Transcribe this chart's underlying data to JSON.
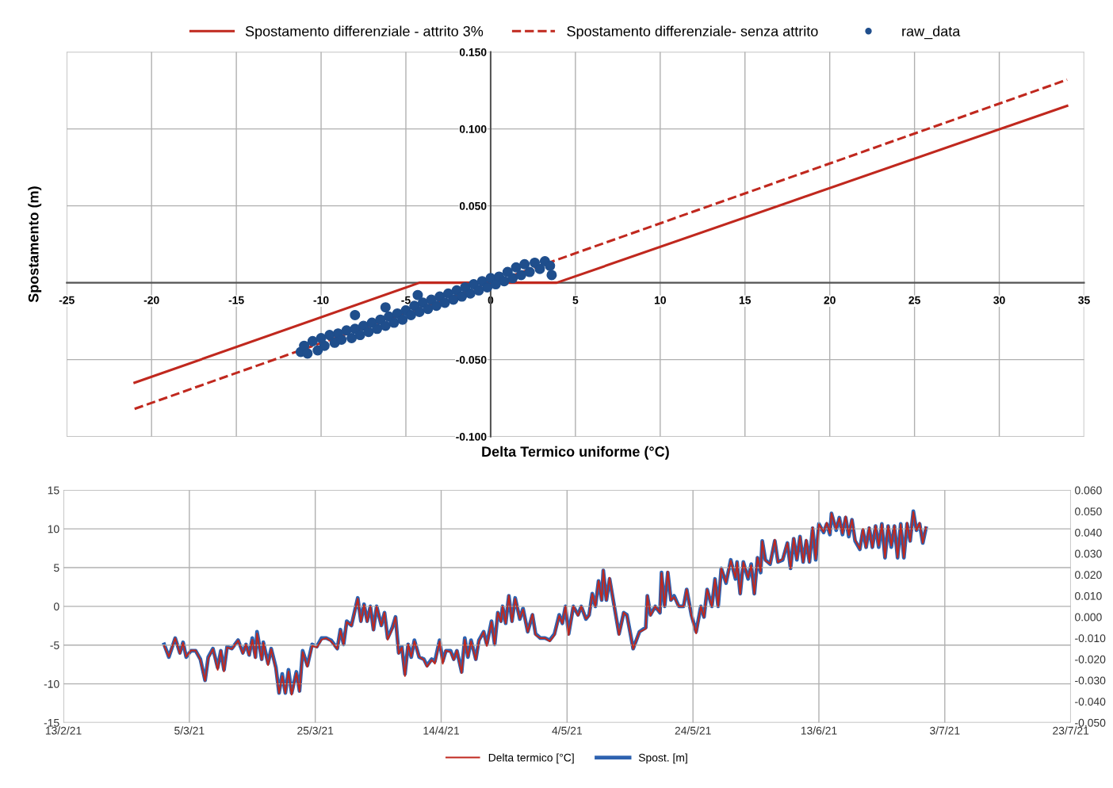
{
  "chart_data": [
    {
      "type": "line",
      "xlabel": "Delta Termico uniforme (°C)",
      "ylabel": "Spostamento (m)",
      "legend": "top",
      "grid": true,
      "xlim": [
        -25,
        35
      ],
      "xticks": [
        -25,
        -20,
        -15,
        -10,
        -5,
        0,
        5,
        10,
        15,
        20,
        25,
        30,
        35
      ],
      "ylim": [
        -0.1,
        0.15
      ],
      "yticks": [
        {
          "value": -0.1,
          "label": "-0.100"
        },
        {
          "value": -0.05,
          "label": "-0.050"
        },
        {
          "value": 0,
          "label": null
        },
        {
          "value": 0.05,
          "label": "0.050"
        },
        {
          "value": 0.1,
          "label": "0.100"
        },
        {
          "value": 0.15,
          "label": "0.150"
        }
      ],
      "series": [
        {
          "name": "Spostamento differenziale - attrito 3%",
          "type": "line",
          "line_style": "solid",
          "color": "#c0281e",
          "x": [
            -21,
            -4.2,
            3.9,
            34
          ],
          "values": [
            -0.065,
            0,
            0,
            0.115
          ]
        },
        {
          "name": "Spostamento differenziale- senza attrito",
          "type": "line",
          "line_style": "dashed",
          "color": "#c0281e",
          "x": [
            -21,
            34
          ],
          "values": [
            -0.082,
            0.132
          ]
        },
        {
          "name": "raw_data",
          "type": "scatter",
          "marker": "circle",
          "color": "#1f4e8c",
          "x": [
            -11.2,
            -11,
            -10.8,
            -10.5,
            -10.2,
            -10,
            -9.8,
            -9.5,
            -9.2,
            -9,
            -8.8,
            -8.5,
            -8.2,
            -8,
            -7.7,
            -7.5,
            -7.2,
            -7,
            -6.7,
            -6.5,
            -6.2,
            -6,
            -5.7,
            -5.5,
            -5.2,
            -5,
            -4.7,
            -4.5,
            -4.2,
            -4,
            -3.7,
            -3.5,
            -3.2,
            -3,
            -2.7,
            -2.5,
            -2.2,
            -2,
            -1.7,
            -1.5,
            -1.2,
            -1,
            -0.7,
            -0.5,
            -0.2,
            0,
            0.3,
            0.5,
            0.8,
            1,
            1.3,
            1.5,
            1.8,
            2,
            2.3,
            2.6,
            2.9,
            3.2,
            3.5,
            3.6,
            -4.3,
            -6.2,
            -8
          ],
          "values": [
            -0.045,
            -0.041,
            -0.046,
            -0.038,
            -0.044,
            -0.036,
            -0.041,
            -0.034,
            -0.039,
            -0.033,
            -0.037,
            -0.031,
            -0.036,
            -0.03,
            -0.034,
            -0.028,
            -0.032,
            -0.026,
            -0.03,
            -0.024,
            -0.028,
            -0.022,
            -0.026,
            -0.02,
            -0.024,
            -0.018,
            -0.021,
            -0.015,
            -0.019,
            -0.013,
            -0.017,
            -0.011,
            -0.015,
            -0.009,
            -0.013,
            -0.007,
            -0.011,
            -0.005,
            -0.009,
            -0.003,
            -0.007,
            -0.001,
            -0.005,
            0.001,
            -0.003,
            0.003,
            -0.001,
            0.004,
            0.001,
            0.007,
            0.003,
            0.01,
            0.005,
            0.012,
            0.007,
            0.013,
            0.009,
            0.014,
            0.011,
            0.005,
            -0.008,
            -0.016,
            -0.021
          ]
        }
      ]
    },
    {
      "type": "line",
      "legend": "bottom",
      "grid": true,
      "xlim": [
        "2021-02-13",
        "2021-07-23"
      ],
      "xticks": [
        {
          "value": "2021-02-13",
          "label": "13/2/21"
        },
        {
          "value": "2021-03-05",
          "label": "5/3/21"
        },
        {
          "value": "2021-03-25",
          "label": "25/3/21"
        },
        {
          "value": "2021-04-14",
          "label": "14/4/21"
        },
        {
          "value": "2021-05-04",
          "label": "4/5/21"
        },
        {
          "value": "2021-05-24",
          "label": "24/5/21"
        },
        {
          "value": "2021-06-13",
          "label": "13/6/21"
        },
        {
          "value": "2021-07-03",
          "label": "3/7/21"
        },
        {
          "value": "2021-07-23",
          "label": "23/7/21"
        }
      ],
      "ylim": [
        -15,
        15
      ],
      "yticks": [
        -15,
        -10,
        -5,
        0,
        5,
        10,
        15
      ],
      "y2lim": [
        -0.05,
        0.06
      ],
      "y2ticks": [
        {
          "value": -0.05,
          "label": "-0.050"
        },
        {
          "value": -0.04,
          "label": "-0.040"
        },
        {
          "value": -0.03,
          "label": "-0.030"
        },
        {
          "value": -0.02,
          "label": "-0.020"
        },
        {
          "value": -0.01,
          "label": "-0.010"
        },
        {
          "value": 0,
          "label": "0.000"
        },
        {
          "value": 0.01,
          "label": "0.010"
        },
        {
          "value": 0.02,
          "label": "0.020"
        },
        {
          "value": 0.03,
          "label": "0.030"
        },
        {
          "value": 0.04,
          "label": "0.040"
        },
        {
          "value": 0.05,
          "label": "0.050"
        },
        {
          "value": 0.06,
          "label": "0.060"
        }
      ],
      "x": [
        "2021-03-01T00:00",
        "2021-03-01T18:00",
        "2021-03-02T18:00",
        "2021-03-03T12:00",
        "2021-03-04T00:00",
        "2021-03-04T12:00",
        "2021-03-05T06:00",
        "2021-03-06T00:00",
        "2021-03-06T18:00",
        "2021-03-07T12:00",
        "2021-03-08T00:00",
        "2021-03-08T18:00",
        "2021-03-09T12:00",
        "2021-03-10T00:00",
        "2021-03-10T12:00",
        "2021-03-11T00:00",
        "2021-03-11T18:00",
        "2021-03-12T18:00",
        "2021-03-13T12:00",
        "2021-03-14T00:00",
        "2021-03-14T12:00",
        "2021-03-15T00:00",
        "2021-03-15T12:00",
        "2021-03-15T18:00",
        "2021-03-16T12:00",
        "2021-03-16T18:00",
        "2021-03-17T12:00",
        "2021-03-18T00:00",
        "2021-03-18T18:00",
        "2021-03-19T06:00",
        "2021-03-19T18:00",
        "2021-03-20T06:00",
        "2021-03-20T18:00",
        "2021-03-21T06:00",
        "2021-03-22T00:00",
        "2021-03-22T12:00",
        "2021-03-23T00:00",
        "2021-03-23T18:00",
        "2021-03-24T12:00",
        "2021-03-25T06:00",
        "2021-03-26T00:00",
        "2021-03-26T18:00",
        "2021-03-27T12:00",
        "2021-03-28T12:00",
        "2021-03-29T00:00",
        "2021-03-29T12:00",
        "2021-03-30T00:00",
        "2021-03-30T18:00",
        "2021-03-31T18:00",
        "2021-04-01T06:00",
        "2021-04-01T18:00",
        "2021-04-02T06:00",
        "2021-04-02T18:00",
        "2021-04-03T06:00",
        "2021-04-03T18:00",
        "2021-04-04T12:00",
        "2021-04-05T00:00",
        "2021-04-05T12:00",
        "2021-04-06T06:00",
        "2021-04-06T18:00",
        "2021-04-07T06:00",
        "2021-04-07T18:00",
        "2021-04-08T06:00",
        "2021-04-08T18:00",
        "2021-04-09T06:00",
        "2021-04-09T18:00",
        "2021-04-10T12:00",
        "2021-04-11T06:00",
        "2021-04-11T18:00",
        "2021-04-12T12:00",
        "2021-04-13T00:00",
        "2021-04-13T18:00",
        "2021-04-14T06:00",
        "2021-04-14T18:00",
        "2021-04-15T12:00",
        "2021-04-16T00:00",
        "2021-04-16T12:00",
        "2021-04-17T06:00",
        "2021-04-17T18:00",
        "2021-04-18T06:00",
        "2021-04-18T18:00",
        "2021-04-19T12:00",
        "2021-04-20T00:00",
        "2021-04-20T18:00",
        "2021-04-21T06:00",
        "2021-04-22T00:00",
        "2021-04-22T12:00",
        "2021-04-23T00:00",
        "2021-04-23T12:00",
        "2021-04-23T18:00",
        "2021-04-24T06:00",
        "2021-04-24T18:00",
        "2021-04-25T06:00",
        "2021-04-25T18:00",
        "2021-04-26T12:00",
        "2021-04-27T00:00",
        "2021-04-27T18:00",
        "2021-04-28T12:00",
        "2021-04-29T00:00",
        "2021-04-29T18:00",
        "2021-04-30T12:00",
        "2021-05-01T06:00",
        "2021-05-02T00:00",
        "2021-05-02T18:00",
        "2021-05-03T06:00",
        "2021-05-03T18:00",
        "2021-05-04T06:00",
        "2021-05-05T00:00",
        "2021-05-05T18:00",
        "2021-05-06T06:00",
        "2021-05-07T00:00",
        "2021-05-07T12:00",
        "2021-05-08T00:00",
        "2021-05-08T12:00",
        "2021-05-09T00:00",
        "2021-05-09T12:00",
        "2021-05-09T18:00",
        "2021-05-10T06:00",
        "2021-05-10T18:00",
        "2021-05-11T12:00",
        "2021-05-12T06:00",
        "2021-05-13T00:00",
        "2021-05-13T12:00",
        "2021-05-14T12:00",
        "2021-05-15T12:00",
        "2021-05-16T12:00",
        "2021-05-16T18:00",
        "2021-05-17T06:00",
        "2021-05-18T00:00",
        "2021-05-18T18:00",
        "2021-05-19T00:00",
        "2021-05-19T12:00",
        "2021-05-20T00:00",
        "2021-05-20T12:00",
        "2021-05-21T00:00",
        "2021-05-21T18:00",
        "2021-05-22T12:00",
        "2021-05-23T00:00",
        "2021-05-23T18:00",
        "2021-05-24T12:00",
        "2021-05-25T06:00",
        "2021-05-25T18:00",
        "2021-05-26T06:00",
        "2021-05-27T00:00",
        "2021-05-27T12:00",
        "2021-05-28T00:00",
        "2021-05-28T12:00",
        "2021-05-29T06:00",
        "2021-05-30T00:00",
        "2021-05-30T18:00",
        "2021-05-31T00:00",
        "2021-05-31T12:00",
        "2021-06-01T00:00",
        "2021-06-01T18:00",
        "2021-06-02T06:00",
        "2021-06-02T18:00",
        "2021-06-03T06:00",
        "2021-06-03T18:00",
        "2021-06-04T00:00",
        "2021-06-04T12:00",
        "2021-06-05T06:00",
        "2021-06-06T00:00",
        "2021-06-06T12:00",
        "2021-06-07T06:00",
        "2021-06-08T00:00",
        "2021-06-08T12:00",
        "2021-06-09T00:00",
        "2021-06-09T12:00",
        "2021-06-10T00:00",
        "2021-06-10T12:00",
        "2021-06-11T00:00",
        "2021-06-11T12:00",
        "2021-06-12T00:00",
        "2021-06-12T12:00",
        "2021-06-13T00:00",
        "2021-06-13T18:00",
        "2021-06-14T06:00",
        "2021-06-14T18:00",
        "2021-06-15T00:00",
        "2021-06-15T18:00",
        "2021-06-16T06:00",
        "2021-06-16T18:00",
        "2021-06-17T06:00",
        "2021-06-17T18:00",
        "2021-06-18T06:00",
        "2021-06-18T18:00",
        "2021-06-19T12:00",
        "2021-06-20T00:00",
        "2021-06-20T12:00",
        "2021-06-21T00:00",
        "2021-06-21T12:00",
        "2021-06-22T00:00",
        "2021-06-22T12:00",
        "2021-06-23T00:00",
        "2021-06-23T12:00",
        "2021-06-24T00:00",
        "2021-06-24T12:00",
        "2021-06-25T00:00",
        "2021-06-25T12:00",
        "2021-06-26T00:00",
        "2021-06-26T12:00",
        "2021-06-27T00:00",
        "2021-06-27T12:00",
        "2021-06-28T00:00",
        "2021-06-28T12:00",
        "2021-06-29T00:00",
        "2021-06-29T12:00",
        "2021-06-30T00:00"
      ],
      "series": [
        {
          "name": "Delta termico [°C]",
          "color": "#c0281e",
          "values": [
            -5.1,
            -6.5,
            -4.1,
            -6.1,
            -4.7,
            -6.5,
            -5.7,
            -5.7,
            -6.9,
            -9.6,
            -6.7,
            -5.5,
            -8.2,
            -5.7,
            -8.4,
            -5.3,
            -5.5,
            -4.4,
            -6.1,
            -4.9,
            -6.3,
            -4.3,
            -6.7,
            -3.5,
            -6.9,
            -4.7,
            -7.6,
            -5.5,
            -8.2,
            -11.2,
            -9.0,
            -11.2,
            -8.4,
            -11.4,
            -8.6,
            -11.0,
            -5.9,
            -7.8,
            -5.1,
            -5.3,
            -4.3,
            -4.1,
            -4.5,
            -5.5,
            -3.1,
            -4.9,
            -2.0,
            -2.5,
            1.0,
            -2.0,
            0.2,
            -2.0,
            0.0,
            -3.1,
            0.0,
            -2.5,
            -0.8,
            -4.3,
            -2.9,
            -1.4,
            -6.1,
            -5.3,
            -9.0,
            -4.9,
            -6.5,
            -4.5,
            -6.5,
            -6.9,
            -7.8,
            -6.9,
            -7.4,
            -4.5,
            -7.4,
            -5.7,
            -5.9,
            -6.9,
            -5.7,
            -8.6,
            -4.3,
            -6.5,
            -4.5,
            -6.9,
            -4.5,
            -3.3,
            -5.1,
            -2.0,
            -4.9,
            -0.8,
            -2.0,
            0.0,
            -2.2,
            1.4,
            -2.0,
            1.0,
            -1.6,
            -0.4,
            -3.3,
            -1.0,
            -3.7,
            -4.1,
            -4.1,
            -4.5,
            -3.7,
            -1.2,
            -2.2,
            0.0,
            -3.7,
            0.0,
            -1.2,
            0.0,
            -1.6,
            -1.2,
            1.6,
            0.0,
            3.3,
            0.8,
            4.7,
            0.8,
            3.7,
            0.0,
            -3.7,
            -0.8,
            -1.2,
            -5.5,
            -3.3,
            -2.9,
            1.4,
            -1.2,
            0.0,
            -0.8,
            4.3,
            0.0,
            4.5,
            0.8,
            1.2,
            0.0,
            0.0,
            2.2,
            -1.2,
            -3.5,
            0.0,
            -1.4,
            2.2,
            0.0,
            3.5,
            0.0,
            4.9,
            3.1,
            5.9,
            3.7,
            5.7,
            1.6,
            5.7,
            3.7,
            5.3,
            1.6,
            6.3,
            4.5,
            8.4,
            5.9,
            5.5,
            8.6,
            5.7,
            6.1,
            8.2,
            4.9,
            8.8,
            6.1,
            9.0,
            5.7,
            8.6,
            5.7,
            10.2,
            6.1,
            10.6,
            9.6,
            10.8,
            9.4,
            12.0,
            10.0,
            11.4,
            9.4,
            11.6,
            9.2,
            11.2,
            8.6,
            7.4,
            10.0,
            7.6,
            10.2,
            7.6,
            10.4,
            7.8,
            10.6,
            6.3,
            10.4,
            7.8,
            10.4,
            6.3,
            10.6,
            6.3,
            10.8,
            8.4,
            12.2,
            9.8,
            10.8,
            8.2,
            10.2
          ]
        },
        {
          "name": "Spost. [m]",
          "color": "#2e62b0",
          "axis": "y2",
          "values": [
            -0.013,
            -0.019,
            -0.01,
            -0.017,
            -0.012,
            -0.019,
            -0.016,
            -0.016,
            -0.02,
            -0.03,
            -0.019,
            -0.015,
            -0.024,
            -0.016,
            -0.025,
            -0.014,
            -0.015,
            -0.011,
            -0.017,
            -0.013,
            -0.018,
            -0.01,
            -0.019,
            -0.007,
            -0.02,
            -0.012,
            -0.022,
            -0.015,
            -0.024,
            -0.036,
            -0.027,
            -0.036,
            -0.025,
            -0.036,
            -0.026,
            -0.035,
            -0.016,
            -0.023,
            -0.013,
            -0.014,
            -0.01,
            -0.01,
            -0.011,
            -0.015,
            -0.006,
            -0.013,
            -0.002,
            -0.004,
            0.009,
            -0.002,
            0.006,
            -0.002,
            0.005,
            -0.006,
            0.005,
            -0.004,
            0.002,
            -0.01,
            -0.005,
            0.0,
            -0.017,
            -0.014,
            -0.027,
            -0.013,
            -0.019,
            -0.011,
            -0.019,
            -0.02,
            -0.023,
            -0.02,
            -0.021,
            -0.011,
            -0.021,
            -0.016,
            -0.016,
            -0.02,
            -0.016,
            -0.026,
            -0.01,
            -0.019,
            -0.011,
            -0.02,
            -0.011,
            -0.007,
            -0.013,
            -0.002,
            -0.013,
            0.002,
            -0.002,
            0.005,
            -0.003,
            0.01,
            -0.002,
            0.009,
            -0.001,
            0.004,
            -0.007,
            0.001,
            -0.008,
            -0.01,
            -0.01,
            -0.011,
            -0.008,
            0.001,
            -0.003,
            0.005,
            -0.008,
            0.005,
            0.001,
            0.005,
            -0.001,
            0.001,
            0.011,
            0.005,
            0.017,
            0.008,
            0.022,
            0.008,
            0.018,
            0.005,
            -0.008,
            0.002,
            0.001,
            -0.015,
            -0.007,
            -0.005,
            0.01,
            0.001,
            0.005,
            0.002,
            0.021,
            0.005,
            0.021,
            0.008,
            0.01,
            0.005,
            0.005,
            0.013,
            0.001,
            -0.007,
            0.005,
            0.0,
            0.013,
            0.005,
            0.018,
            0.005,
            0.023,
            0.016,
            0.027,
            0.018,
            0.026,
            0.011,
            0.026,
            0.018,
            0.025,
            0.011,
            0.028,
            0.021,
            0.036,
            0.027,
            0.025,
            0.036,
            0.026,
            0.027,
            0.035,
            0.023,
            0.037,
            0.027,
            0.038,
            0.026,
            0.036,
            0.026,
            0.042,
            0.027,
            0.044,
            0.04,
            0.044,
            0.039,
            0.049,
            0.041,
            0.047,
            0.039,
            0.047,
            0.038,
            0.046,
            0.036,
            0.032,
            0.041,
            0.033,
            0.042,
            0.033,
            0.043,
            0.033,
            0.044,
            0.028,
            0.043,
            0.033,
            0.043,
            0.028,
            0.044,
            0.028,
            0.044,
            0.036,
            0.05,
            0.041,
            0.044,
            0.035,
            0.042
          ]
        }
      ]
    }
  ]
}
